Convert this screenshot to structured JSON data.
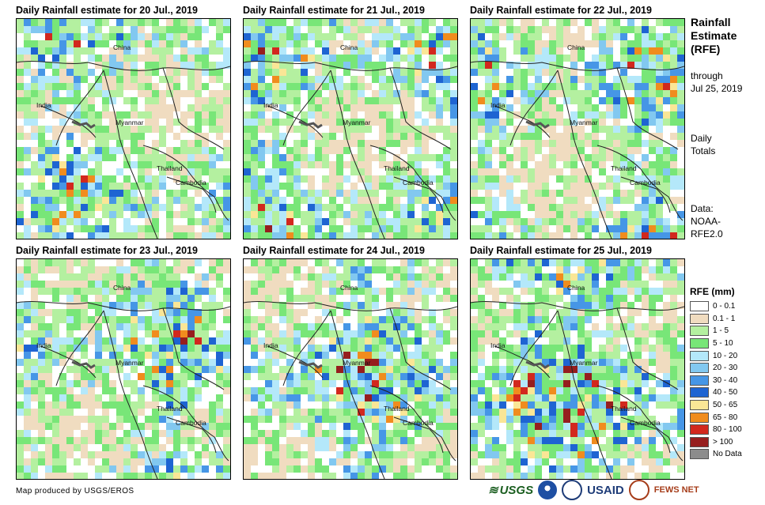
{
  "panels": [
    {
      "title": "Daily Rainfall estimate for 20 Jul., 2019",
      "intensity": 0.35
    },
    {
      "title": "Daily Rainfall estimate for 21 Jul., 2019",
      "intensity": 0.5
    },
    {
      "title": "Daily Rainfall estimate for 22 Jul., 2019",
      "intensity": 0.4
    },
    {
      "title": "Daily Rainfall estimate for 23 Jul., 2019",
      "intensity": 0.55
    },
    {
      "title": "Daily Rainfall estimate for 24 Jul., 2019",
      "intensity": 0.7
    },
    {
      "title": "Daily Rainfall estimate for 25 Jul., 2019",
      "intensity": 0.9
    }
  ],
  "map_labels": {
    "china": "China",
    "india": "India",
    "myanmar": "Myanmar",
    "thailand": "Thailand",
    "cambodia": "Cambodia"
  },
  "sidebar": {
    "title_line1": "Rainfall",
    "title_line2": "Estimate",
    "title_line3": "(RFE)",
    "through_label": "through",
    "through_date": "Jul 25, 2019",
    "totals_line1": "Daily",
    "totals_line2": "Totals",
    "data_label": "Data:",
    "data_source_line1": "NOAA-",
    "data_source_line2": "RFE2.0"
  },
  "legend": {
    "title": "RFE (mm)",
    "items": [
      {
        "label": "0 - 0.1",
        "color": "#ffffff"
      },
      {
        "label": "0.1 - 1",
        "color": "#f0dcc0"
      },
      {
        "label": "1 - 5",
        "color": "#b4f0a0"
      },
      {
        "label": "5 - 10",
        "color": "#78e678"
      },
      {
        "label": "10 - 20",
        "color": "#b4e8fa"
      },
      {
        "label": "20 - 30",
        "color": "#82c8f0"
      },
      {
        "label": "30 - 40",
        "color": "#4696e6"
      },
      {
        "label": "40 - 50",
        "color": "#1e64d2"
      },
      {
        "label": "50 - 65",
        "color": "#fae696"
      },
      {
        "label": "65 - 80",
        "color": "#f08c1e"
      },
      {
        "label": "80 - 100",
        "color": "#d2281e"
      },
      {
        "label": "> 100",
        "color": "#961e1e"
      },
      {
        "label": "No Data",
        "color": "#8c8c8c"
      }
    ]
  },
  "footer": {
    "credit": "Map produced by USGS/EROS",
    "logo_usgs": "USGS",
    "logo_usaid": "USAID",
    "logo_fews": "FEWS NET"
  }
}
